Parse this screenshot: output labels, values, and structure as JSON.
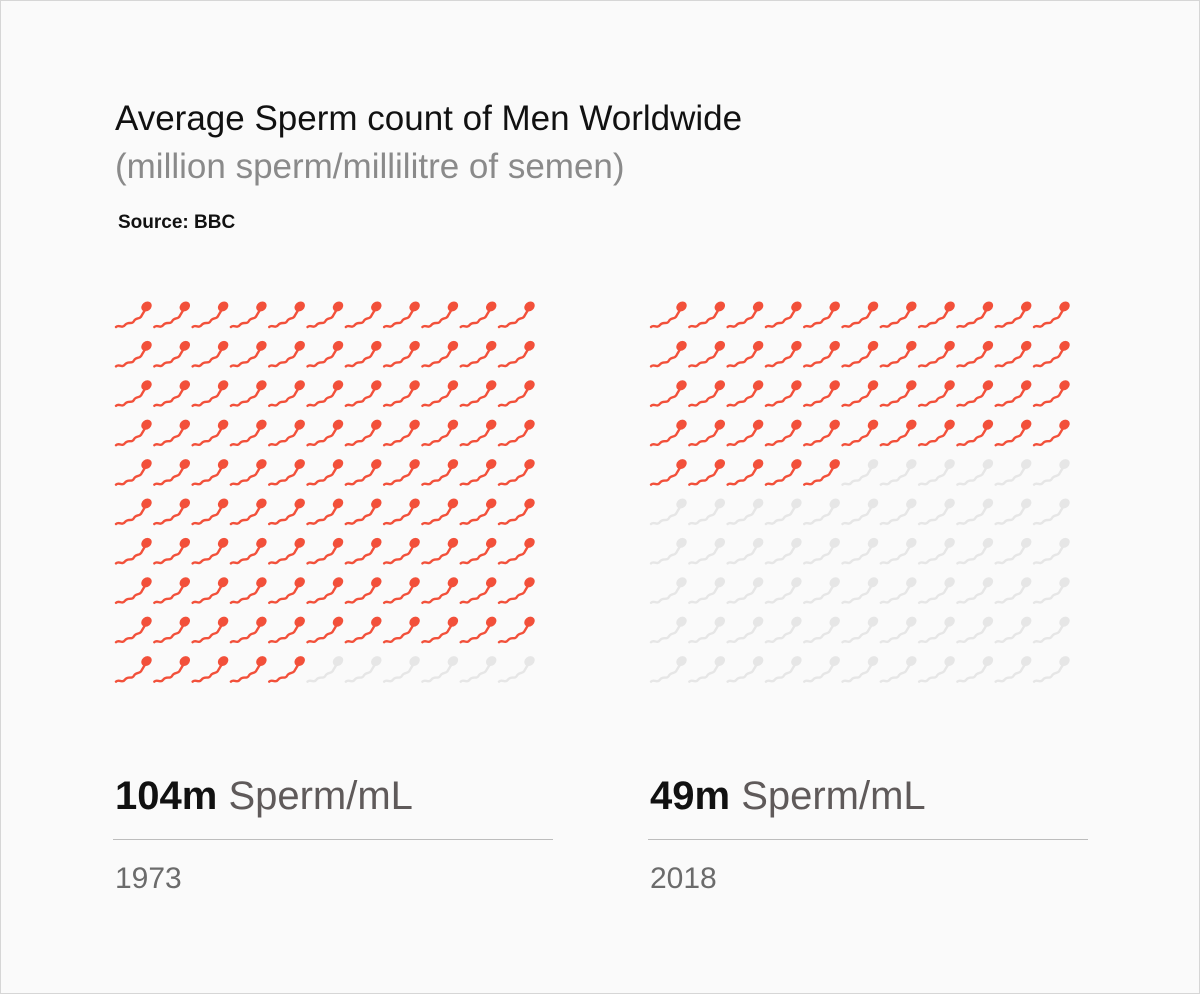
{
  "header": {
    "title": "Average Sperm count of Men Worldwide",
    "subtitle": "(million sperm/millilitre of semen)",
    "source": "Source: BBC"
  },
  "colors": {
    "filled": "#f2503a",
    "empty": "#e6e6e6"
  },
  "chart_data": {
    "type": "table",
    "title": "Average Sperm count of Men Worldwide",
    "subtitle": "(million sperm/millilitre of semen)",
    "grid": {
      "columns": 11,
      "rows": 10
    },
    "panels": [
      {
        "year": "1973",
        "value": 104,
        "value_label": "104m",
        "unit_label": "Sperm/mL"
      },
      {
        "year": "2018",
        "value": 49,
        "value_label": "49m",
        "unit_label": "Sperm/mL"
      }
    ]
  }
}
